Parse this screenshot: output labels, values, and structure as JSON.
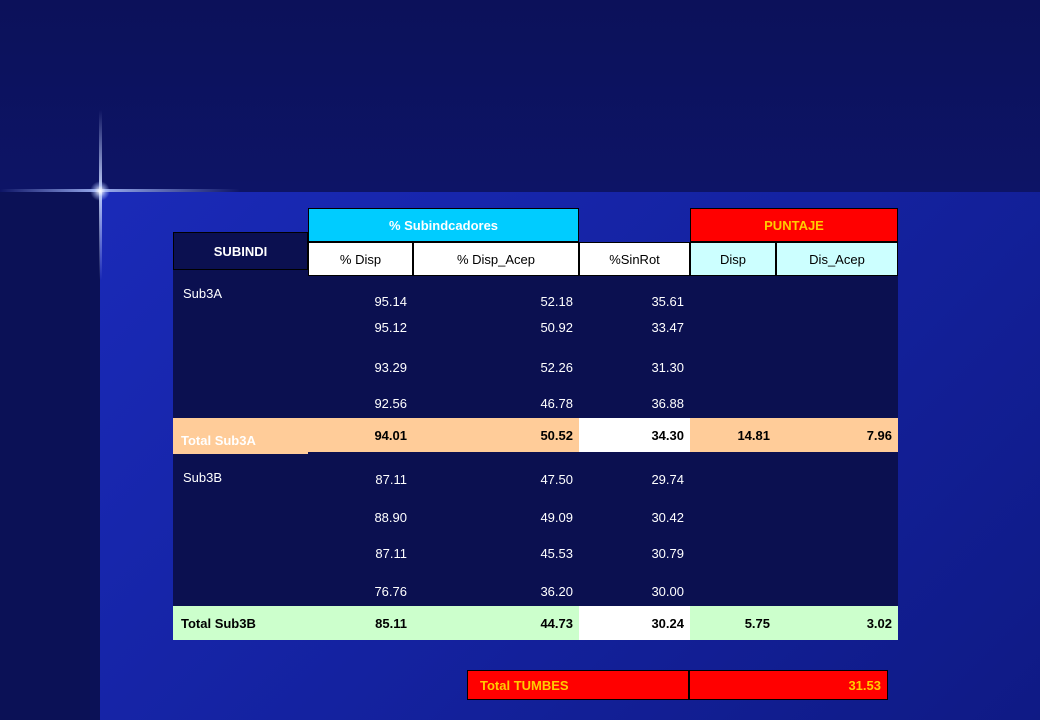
{
  "header": {
    "subindicadores": "% Subindcadores",
    "puntaje": "PUNTAJE",
    "subindi": "SUBINDI",
    "columns": [
      "% Disp",
      "% Disp_Acep",
      "%SinRot",
      "Disp",
      "Dis_Acep"
    ]
  },
  "groups": [
    {
      "name": "Sub3A",
      "rows": [
        [
          "95.14",
          "52.18",
          "35.61"
        ],
        [
          "95.12",
          "50.92",
          "33.47"
        ],
        [
          "93.29",
          "52.26",
          "31.30"
        ],
        [
          "92.56",
          "46.78",
          "36.88"
        ]
      ],
      "total": {
        "label": "Total Sub3A",
        "values": [
          "94.01",
          "50.52",
          "34.30",
          "14.81",
          "7.96"
        ]
      }
    },
    {
      "name": "Sub3B",
      "rows": [
        [
          "87.11",
          "47.50",
          "29.74"
        ],
        [
          "88.90",
          "49.09",
          "30.42"
        ],
        [
          "87.11",
          "45.53",
          "30.79"
        ],
        [
          "76.76",
          "36.20",
          "30.00"
        ]
      ],
      "total": {
        "label": "Total Sub3B",
        "values": [
          "85.11",
          "44.73",
          "30.24",
          "5.75",
          "3.02"
        ]
      }
    }
  ],
  "grand_total": {
    "label": "Total TUMBES",
    "value": "31.53"
  },
  "colors": {
    "cyan": "#00ccff",
    "red": "#ff0000",
    "yellow": "#ffcc00",
    "light_blue": "#ccffff",
    "peach": "#ffcc99",
    "light_green": "#ccffcc"
  }
}
